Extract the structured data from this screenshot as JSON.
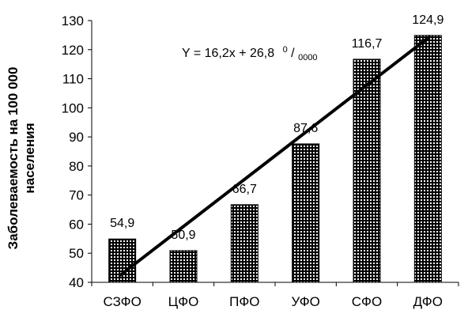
{
  "chart_data": {
    "type": "bar",
    "categories": [
      "СЗФО",
      "ЦФО",
      "ПФО",
      "УФО",
      "СФО",
      "ДФО"
    ],
    "values": [
      54.9,
      50.9,
      66.7,
      87.6,
      116.7,
      124.9
    ],
    "data_labels": [
      "54,9",
      "50,9",
      "66,7",
      "87,6",
      "116,7",
      "124,9"
    ],
    "ylabel_line1": "Заболеваемость на 100 000",
    "ylabel_line2": "населения",
    "ylim": [
      40,
      130
    ],
    "yticks": [
      40,
      50,
      60,
      70,
      80,
      90,
      100,
      110,
      120,
      130
    ],
    "grid": false,
    "trendline": {
      "slope": 16.2,
      "intercept": 26.8,
      "equation_text": "Y = 16,2x + 26,8",
      "unit_sup": "0",
      "unit_sub": "0000"
    }
  }
}
